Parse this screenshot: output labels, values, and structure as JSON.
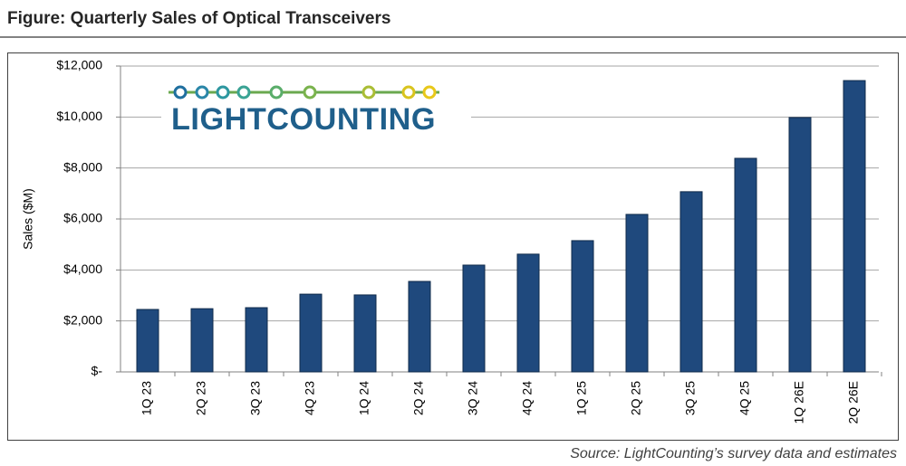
{
  "chart_data": {
    "type": "bar",
    "title": "Figure: Quarterly Sales of Optical Transceivers",
    "y_label": "Sales ($M)",
    "logo": "LIGHTCOUNTING",
    "source": "Source: LightCounting’s survey data and estimates",
    "categories": [
      "1Q 23",
      "2Q 23",
      "3Q 23",
      "4Q 23",
      "1Q 24",
      "2Q 24",
      "3Q 24",
      "4Q 24",
      "1Q 25",
      "2Q 25",
      "3Q 25",
      "4Q 25",
      "1Q 26E",
      "2Q 26E"
    ],
    "values": [
      2450,
      2480,
      2520,
      3050,
      3020,
      3550,
      4190,
      4620,
      5150,
      6180,
      7070,
      8380,
      9980,
      11430
    ],
    "color": "#1f497d",
    "ylim": [
      0,
      12000
    ],
    "yticks": [
      {
        "value": 0,
        "label": "$-"
      },
      {
        "value": 2000,
        "label": "$2,000"
      },
      {
        "value": 4000,
        "label": "$4,000"
      },
      {
        "value": 6000,
        "label": "$6,000"
      },
      {
        "value": 8000,
        "label": "$8,000"
      },
      {
        "value": 10000,
        "label": "$10,000"
      },
      {
        "value": 12000,
        "label": "$12,000"
      }
    ],
    "grid": true
  }
}
